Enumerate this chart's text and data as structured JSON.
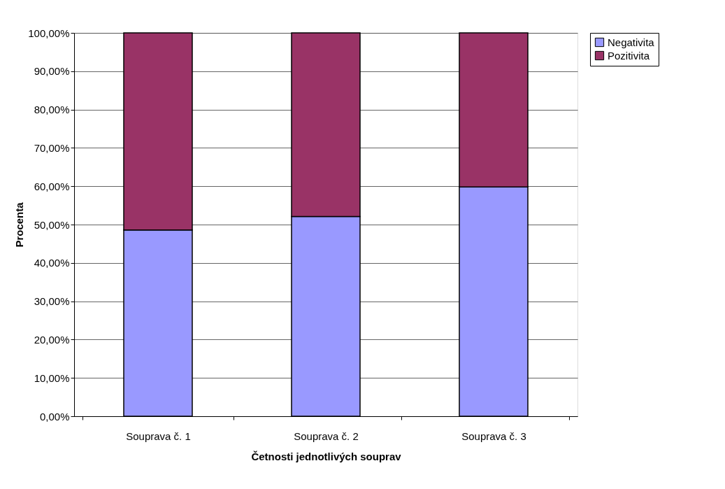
{
  "chart_data": {
    "type": "bar",
    "stacked": true,
    "xlabel": "Četnosti jednotlivých souprav",
    "ylabel": "Procenta",
    "categories": [
      "Souprava č. 1",
      "Souprava č. 2",
      "Souprava č. 3"
    ],
    "series": [
      {
        "name": "Negativita",
        "color": "#9999ff",
        "values": [
          48.6,
          52.1,
          59.8
        ]
      },
      {
        "name": "Pozitivita",
        "color": "#993366",
        "values": [
          51.4,
          47.9,
          40.2
        ]
      }
    ],
    "ylim": [
      0,
      100
    ],
    "yticks": [
      {
        "value": 0,
        "label": "0,00%"
      },
      {
        "value": 10,
        "label": "10,00%"
      },
      {
        "value": 20,
        "label": "20,00%"
      },
      {
        "value": 30,
        "label": "30,00%"
      },
      {
        "value": 40,
        "label": "40,00%"
      },
      {
        "value": 50,
        "label": "50,00%"
      },
      {
        "value": 60,
        "label": "60,00%"
      },
      {
        "value": 70,
        "label": "70,00%"
      },
      {
        "value": 80,
        "label": "80,00%"
      },
      {
        "value": 90,
        "label": "90,00%"
      },
      {
        "value": 100,
        "label": "100,00%"
      }
    ],
    "grid": "y",
    "legend": "right"
  }
}
